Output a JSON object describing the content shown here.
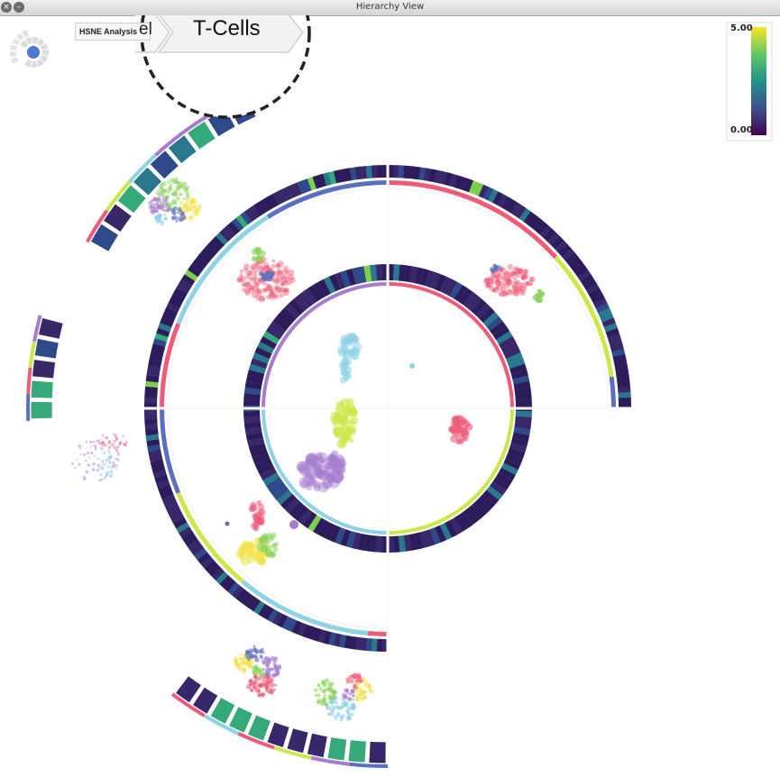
{
  "window": {
    "title": "Hierarchy View",
    "close_icon": "close-icon",
    "minimize_icon": "minimize-icon"
  },
  "breadcrumb": {
    "items": [
      {
        "label": "HSNE Analysis"
      },
      {
        "label": "el"
      },
      {
        "label": "T-Cells"
      }
    ]
  },
  "colorbar": {
    "max_label": "5.00",
    "min_label": "0.00",
    "colors": [
      "#440154",
      "#3b528b",
      "#21918c",
      "#5ec962",
      "#fde725"
    ]
  },
  "cluster_colors": [
    "#ef5a78",
    "#8dd35f",
    "#8ed2e6",
    "#a77ccf",
    "#f2e14b",
    "#cbe84a",
    "#5a6fc0"
  ],
  "ring_colors": [
    "#2d1c5c",
    "#38286a",
    "#2e4a8a",
    "#2a788e",
    "#35a97a",
    "#7ed04b"
  ],
  "minimap": {
    "node_color": "#4a7ad6"
  }
}
